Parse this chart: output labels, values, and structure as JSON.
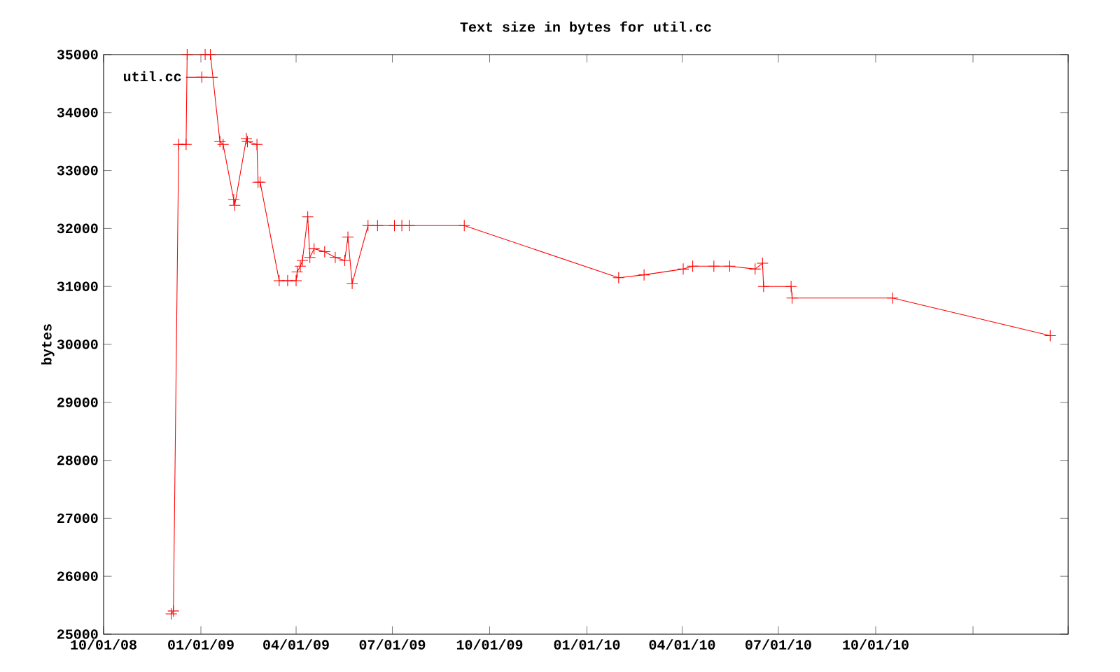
{
  "chart_data": {
    "type": "line",
    "title": "Text size in bytes for util.cc",
    "ylabel": "bytes",
    "x": [
      "2008-12-04",
      "2008-12-06",
      "2008-12-11",
      "2008-12-18",
      "2008-12-19",
      "2009-01-05",
      "2009-01-10",
      "2009-01-19",
      "2009-01-22",
      "2009-02-01",
      "2009-02-02",
      "2009-02-13",
      "2009-02-14",
      "2009-02-23",
      "2009-02-24",
      "2009-02-26",
      "2009-03-16",
      "2009-03-24",
      "2009-04-01",
      "2009-04-02",
      "2009-04-05",
      "2009-04-07",
      "2009-04-12",
      "2009-04-14",
      "2009-04-18",
      "2009-04-28",
      "2009-05-08",
      "2009-05-17",
      "2009-05-20",
      "2009-05-24",
      "2009-06-08",
      "2009-06-17",
      "2009-07-03",
      "2009-07-10",
      "2009-07-17",
      "2009-09-07",
      "2010-01-31",
      "2010-02-24",
      "2010-04-02",
      "2010-04-11",
      "2010-05-01",
      "2010-05-16",
      "2010-06-09",
      "2010-06-16",
      "2010-06-17",
      "2010-07-13",
      "2010-07-14",
      "2010-10-17",
      "2011-03-15"
    ],
    "series": [
      {
        "name": "util.cc",
        "color": "#ff0000",
        "values": [
          25350,
          25400,
          33450,
          33450,
          35000,
          35000,
          35000,
          33500,
          33450,
          32500,
          32400,
          33550,
          33500,
          33450,
          32800,
          32800,
          31100,
          31100,
          31100,
          31250,
          31350,
          31450,
          32200,
          31500,
          31650,
          31600,
          31500,
          31450,
          31850,
          31050,
          32050,
          32050,
          32050,
          32050,
          32050,
          32050,
          31150,
          31200,
          31300,
          31350,
          31350,
          31350,
          31300,
          31400,
          31000,
          31000,
          30800,
          30800,
          30150
        ]
      }
    ],
    "xlim": [
      "2008-10-01",
      "2011-04-01"
    ],
    "xticks": [
      {
        "value": "2008-10-01",
        "label": "10/01/08"
      },
      {
        "value": "2009-01-01",
        "label": "01/01/09"
      },
      {
        "value": "2009-04-01",
        "label": "04/01/09"
      },
      {
        "value": "2009-07-01",
        "label": "07/01/09"
      },
      {
        "value": "2009-10-01",
        "label": "10/01/09"
      },
      {
        "value": "2010-01-01",
        "label": "01/01/10"
      },
      {
        "value": "2010-04-01",
        "label": "04/01/10"
      },
      {
        "value": "2010-07-01",
        "label": "07/01/10"
      },
      {
        "value": "2010-10-01",
        "label": "10/01/10"
      },
      {
        "value": "2011-01-01",
        "label": null
      },
      {
        "value": "2011-04-01",
        "label": null
      }
    ],
    "ylim": [
      25000,
      35000
    ],
    "yticks": [
      25000,
      26000,
      27000,
      28000,
      29000,
      30000,
      31000,
      32000,
      33000,
      34000,
      35000
    ],
    "legend": "top left",
    "marker": "cross",
    "line_style": "solid"
  }
}
